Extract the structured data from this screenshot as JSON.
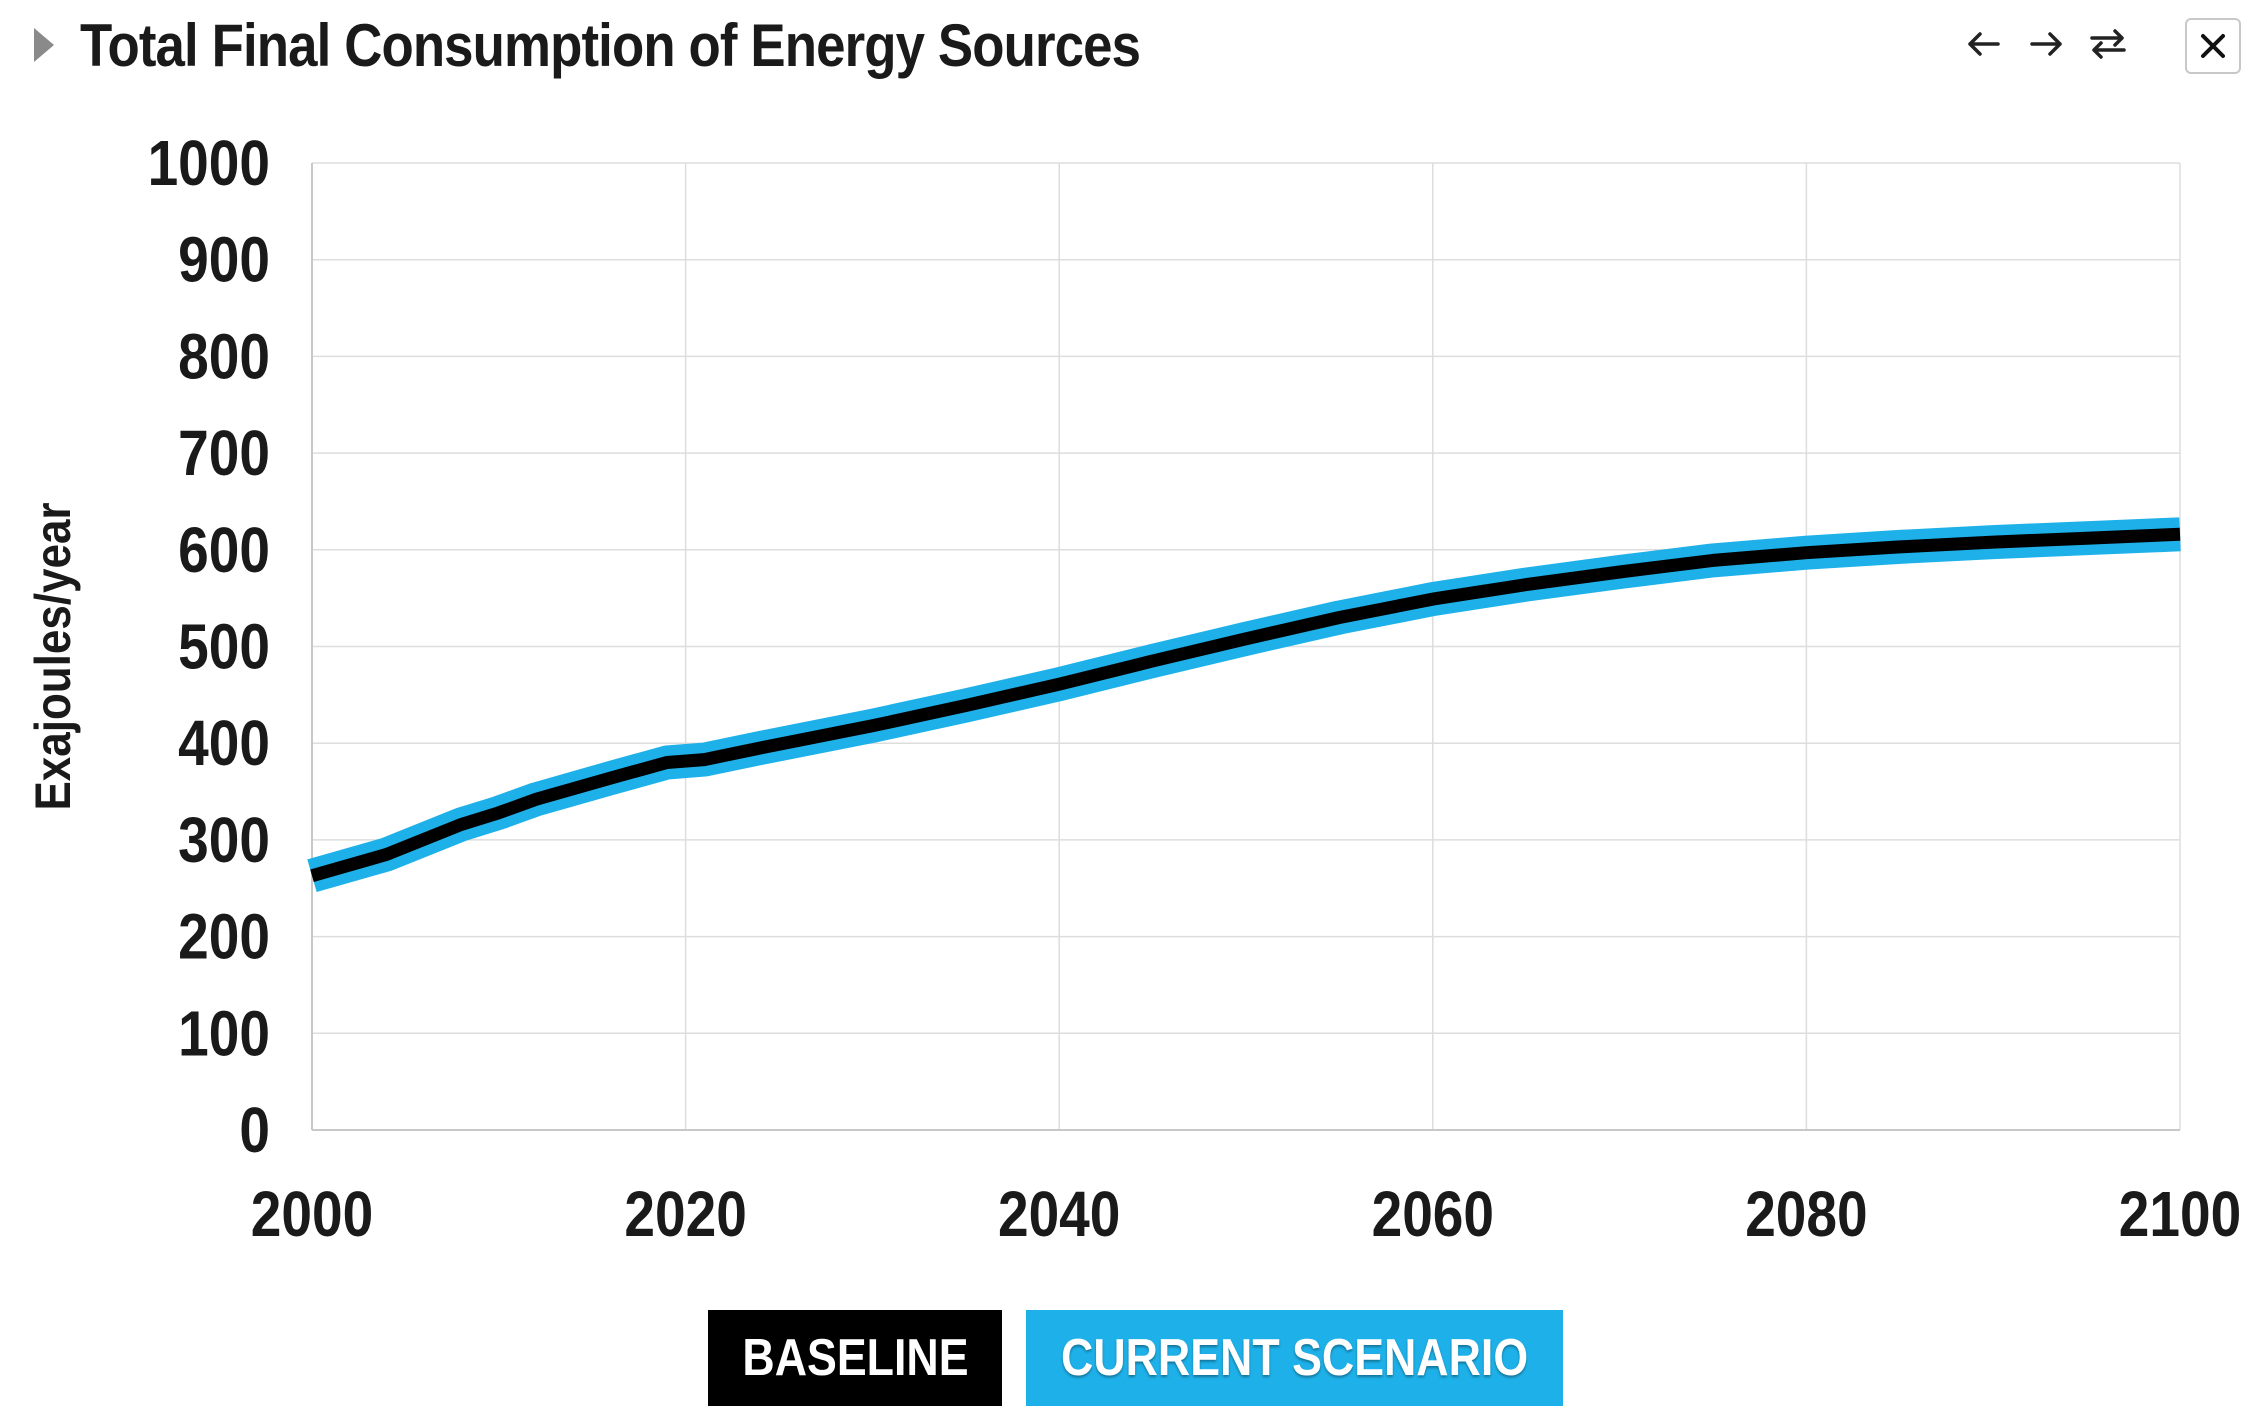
{
  "header": {
    "title": "Total Final Consumption of Energy Sources",
    "icons": [
      "caret-right-icon",
      "arrow-left-icon",
      "arrow-right-icon",
      "swap-arrows-icon",
      "close-icon"
    ]
  },
  "legend": {
    "baseline_label": "BASELINE",
    "current_label": "CURRENT SCENARIO"
  },
  "colors": {
    "baseline": "#000000",
    "current_scenario": "#1eb1e9",
    "grid": "#dddddd"
  },
  "chart_data": {
    "type": "line",
    "title": "Total Final Consumption of Energy Sources",
    "xlabel": "",
    "ylabel": "Exajoules/year",
    "xlim": [
      2000,
      2100
    ],
    "ylim": [
      0,
      1000
    ],
    "x_ticks": [
      2000,
      2020,
      2040,
      2060,
      2080,
      2100
    ],
    "y_ticks": [
      0,
      100,
      200,
      300,
      400,
      500,
      600,
      700,
      800,
      900,
      1000
    ],
    "grid": true,
    "legend_position": "bottom",
    "x": [
      2000,
      2004,
      2008,
      2010,
      2012,
      2016,
      2019,
      2021,
      2024,
      2030,
      2035,
      2040,
      2045,
      2050,
      2055,
      2060,
      2065,
      2070,
      2075,
      2080,
      2085,
      2090,
      2095,
      2100
    ],
    "series": [
      {
        "name": "BASELINE",
        "values": [
          263,
          285,
          316,
          328,
          342,
          364,
          380,
          383,
          395,
          418,
          439,
          461,
          485,
          508,
          530,
          549,
          564,
          577,
          589,
          597,
          603,
          608,
          612,
          616
        ]
      },
      {
        "name": "CURRENT SCENARIO",
        "values": [
          263,
          285,
          316,
          328,
          342,
          364,
          380,
          383,
          395,
          418,
          439,
          461,
          485,
          508,
          530,
          549,
          564,
          577,
          589,
          597,
          603,
          608,
          612,
          616
        ]
      }
    ]
  }
}
